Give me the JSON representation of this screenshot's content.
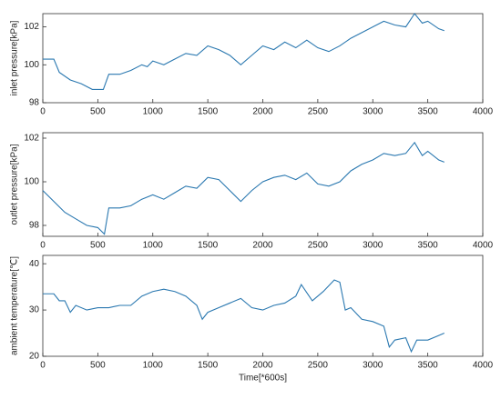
{
  "chart_data": [
    {
      "type": "line",
      "ylabel": "inlet pressure[kPa]",
      "x": [
        0,
        100,
        150,
        250,
        350,
        450,
        550,
        600,
        700,
        800,
        900,
        950,
        1000,
        1100,
        1200,
        1300,
        1400,
        1500,
        1600,
        1700,
        1800,
        1900,
        2000,
        2100,
        2200,
        2300,
        2400,
        2500,
        2600,
        2700,
        2800,
        2900,
        3000,
        3100,
        3200,
        3300,
        3380,
        3450,
        3500,
        3600,
        3650
      ],
      "series": [
        {
          "name": "inlet pressure",
          "color": "#2a78b0",
          "values": [
            100.3,
            100.3,
            99.6,
            99.2,
            99.0,
            98.7,
            98.7,
            99.5,
            99.5,
            99.7,
            100.0,
            99.9,
            100.2,
            100.0,
            100.3,
            100.6,
            100.5,
            101.0,
            100.8,
            100.5,
            100.0,
            100.5,
            101.0,
            100.8,
            101.2,
            100.9,
            101.3,
            100.9,
            100.7,
            101.0,
            101.4,
            101.7,
            102.0,
            102.3,
            102.1,
            102.0,
            102.7,
            102.2,
            102.3,
            101.9,
            101.8
          ]
        }
      ],
      "xlim": [
        0,
        4000
      ],
      "xticks": [
        0,
        500,
        1000,
        1500,
        2000,
        2500,
        3000,
        3500,
        4000
      ],
      "ylim": [
        98,
        102.7
      ],
      "yticks": [
        98,
        100,
        102
      ]
    },
    {
      "type": "line",
      "ylabel": "outlet pressure[kPa]",
      "x": [
        0,
        100,
        200,
        300,
        400,
        500,
        560,
        600,
        700,
        800,
        900,
        1000,
        1100,
        1200,
        1300,
        1400,
        1500,
        1600,
        1700,
        1800,
        1900,
        2000,
        2100,
        2200,
        2300,
        2400,
        2500,
        2600,
        2700,
        2800,
        2900,
        3000,
        3100,
        3200,
        3300,
        3380,
        3450,
        3500,
        3600,
        3650
      ],
      "series": [
        {
          "name": "outlet pressure",
          "color": "#2a78b0",
          "values": [
            99.6,
            99.1,
            98.6,
            98.3,
            98.0,
            97.9,
            97.6,
            98.8,
            98.8,
            98.9,
            99.2,
            99.4,
            99.2,
            99.5,
            99.8,
            99.7,
            100.2,
            100.1,
            99.6,
            99.1,
            99.6,
            100.0,
            100.2,
            100.3,
            100.1,
            100.4,
            99.9,
            99.8,
            100.0,
            100.5,
            100.8,
            101.0,
            101.3,
            101.2,
            101.3,
            101.8,
            101.2,
            101.4,
            101.0,
            100.9
          ]
        }
      ],
      "xlim": [
        0,
        4000
      ],
      "xticks": [
        0,
        500,
        1000,
        1500,
        2000,
        2500,
        3000,
        3500,
        4000
      ],
      "ylim": [
        97.5,
        102.25
      ],
      "yticks": [
        98,
        100,
        102
      ]
    },
    {
      "type": "line",
      "ylabel": "ambient temperature[℃]",
      "xlabel": "Time[*600s]",
      "x": [
        0,
        100,
        150,
        200,
        250,
        300,
        400,
        500,
        600,
        700,
        800,
        900,
        1000,
        1100,
        1200,
        1300,
        1400,
        1450,
        1500,
        1600,
        1700,
        1800,
        1900,
        2000,
        2100,
        2200,
        2300,
        2350,
        2450,
        2550,
        2650,
        2700,
        2750,
        2800,
        2900,
        3000,
        3100,
        3150,
        3200,
        3300,
        3350,
        3400,
        3500,
        3600,
        3650
      ],
      "series": [
        {
          "name": "ambient temperature",
          "color": "#2a78b0",
          "values": [
            33.5,
            33.5,
            32,
            32,
            29.5,
            31,
            30,
            30.5,
            30.5,
            31,
            31,
            33,
            34,
            34.5,
            34,
            33,
            31,
            28,
            29.5,
            30.5,
            31.5,
            32.5,
            30.5,
            30,
            31,
            31.5,
            33,
            35.5,
            32,
            34,
            36.5,
            36,
            30,
            30.5,
            28,
            27.5,
            26.5,
            22,
            23.5,
            24,
            21,
            23.5,
            23.5,
            24.5,
            25
          ]
        }
      ],
      "xlim": [
        0,
        4000
      ],
      "xticks": [
        0,
        500,
        1000,
        1500,
        2000,
        2500,
        3000,
        3500,
        4000
      ],
      "ylim": [
        20,
        41.8
      ],
      "yticks": [
        20,
        30,
        40
      ]
    }
  ]
}
